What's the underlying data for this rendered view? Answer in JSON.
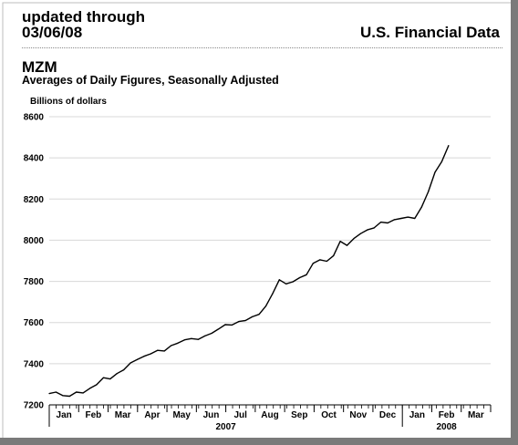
{
  "header": {
    "updated_line1": "updated through",
    "updated_line2": "03/06/08",
    "source": "U.S. Financial Data"
  },
  "colors": {
    "line": "#000000",
    "grid": "#d8d8d8",
    "frame_shadow": "#7a7a7a"
  },
  "chart_data": {
    "type": "line",
    "title": "MZM",
    "subtitle": "Averages of Daily Figures, Seasonally Adjusted",
    "ylabel": "Billions of dollars",
    "xlabel": "",
    "ylim": [
      7200,
      8600
    ],
    "yticks": [
      7200,
      7400,
      7600,
      7800,
      8000,
      8200,
      8400,
      8600
    ],
    "grid": true,
    "months": [
      "Jan",
      "Feb",
      "Mar",
      "Apr",
      "May",
      "Jun",
      "Jul",
      "Aug",
      "Sep",
      "Oct",
      "Nov",
      "Dec",
      "Jan",
      "Feb",
      "Mar"
    ],
    "years": [
      {
        "label": "2007",
        "start_month": 0,
        "end_month": 11
      },
      {
        "label": "2008",
        "start_month": 12,
        "end_month": 14
      }
    ],
    "series": [
      {
        "x": [
          0,
          0.23,
          0.46,
          0.69,
          0.92,
          1.15,
          1.38,
          1.61,
          1.84,
          2.07,
          2.3,
          2.53,
          2.76,
          2.99,
          3.22,
          3.45,
          3.68,
          3.91,
          4.14,
          4.37,
          4.6,
          4.83,
          5.06,
          5.29,
          5.52,
          5.75,
          5.98,
          6.21,
          6.44,
          6.67,
          6.9,
          7.13,
          7.36,
          7.59,
          7.82,
          8.05,
          8.28,
          8.51,
          8.74,
          8.97,
          9.2,
          9.43,
          9.66,
          9.89,
          10.12,
          10.35,
          10.58,
          10.81,
          11.04,
          11.27,
          11.5,
          11.73,
          11.96,
          12.19,
          12.42,
          12.65,
          12.88,
          13.11,
          13.34,
          13.57
        ],
        "values": [
          7255,
          7262,
          7245,
          7242,
          7262,
          7258,
          7280,
          7298,
          7332,
          7326,
          7352,
          7370,
          7404,
          7420,
          7436,
          7448,
          7465,
          7462,
          7488,
          7500,
          7516,
          7522,
          7518,
          7535,
          7548,
          7568,
          7590,
          7588,
          7605,
          7610,
          7628,
          7640,
          7680,
          7740,
          7808,
          7788,
          7798,
          7818,
          7832,
          7888,
          7905,
          7898,
          7925,
          7995,
          7975,
          8008,
          8032,
          8050,
          8060,
          8088,
          8084,
          8100,
          8106,
          8112,
          8106,
          8160,
          8235,
          8330,
          8382,
          8460
        ]
      }
    ]
  }
}
